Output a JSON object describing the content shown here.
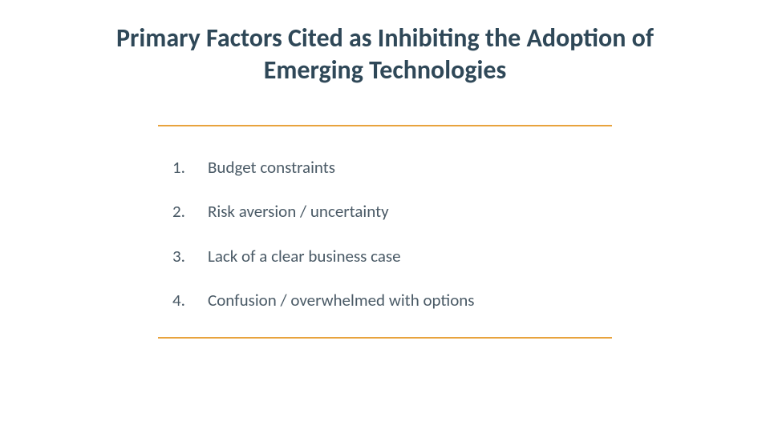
{
  "title": "Primary Factors Cited as Inhibiting the Adoption of Emerging Technologies",
  "items": [
    {
      "num": "1.",
      "text": "Budget constraints"
    },
    {
      "num": "2.",
      "text": "Risk aversion / uncertainty"
    },
    {
      "num": "3.",
      "text": "Lack of a clear business case"
    },
    {
      "num": "4.",
      "text": "Confusion / overwhelmed with options"
    }
  ],
  "colors": {
    "title_color": "#2f4858",
    "text_color": "#4a5a66",
    "rule_color": "#e8a33d",
    "background": "#ffffff"
  },
  "typography": {
    "title_fontsize": 32,
    "title_weight": 700,
    "item_fontsize": 21,
    "item_weight": 400,
    "font_family": "Calibri"
  },
  "layout": {
    "list_width": 566,
    "rule_thickness": 2
  }
}
